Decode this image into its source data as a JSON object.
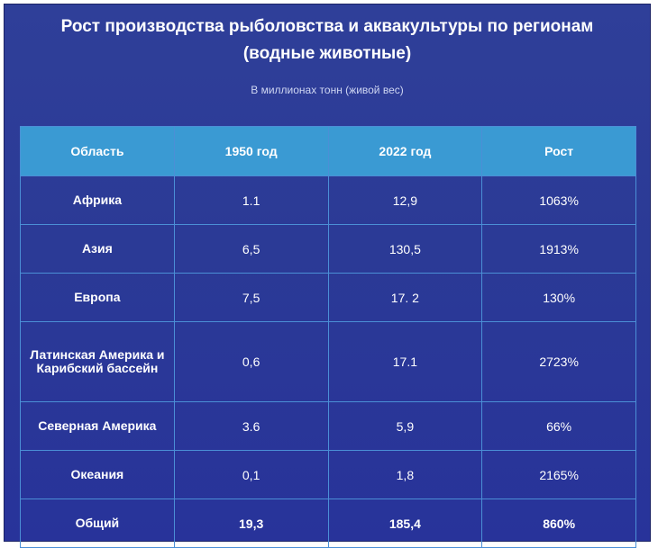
{
  "title": "Рост производства рыболовства и аквакультуры по регионам (водные животные)",
  "subtitle": "В миллионах тонн (живой вес)",
  "chart_data": {
    "type": "table",
    "columns": [
      "Область",
      "1950 год",
      "2022 год",
      "Рост"
    ],
    "rows": [
      {
        "region": "Африка",
        "y1950": "1.1",
        "y2022": "12,9",
        "growth": "1063%"
      },
      {
        "region": "Азия",
        "y1950": "6,5",
        "y2022": "130,5",
        "growth": "1913%"
      },
      {
        "region": "Европа",
        "y1950": "7,5",
        "y2022": "17. 2",
        "growth": "130%"
      },
      {
        "region": "Латинская Америка и Карибский бассейн",
        "y1950": "0,6",
        "y2022": "17.1",
        "growth": "2723%"
      },
      {
        "region": "Северная Америка",
        "y1950": "3.6",
        "y2022": "5,9",
        "growth": "66%"
      },
      {
        "region": "Океания",
        "y1950": "0,1",
        "y2022": "1,8",
        "growth": "2165%"
      },
      {
        "region": "Общий",
        "y1950": "19,3",
        "y2022": "185,4",
        "growth": "860%"
      }
    ]
  }
}
